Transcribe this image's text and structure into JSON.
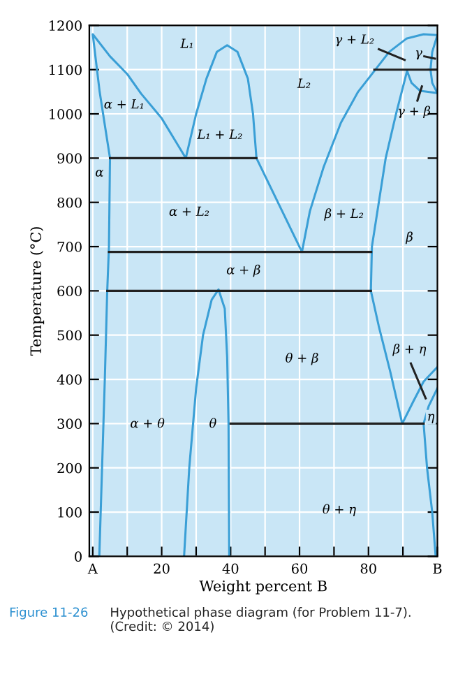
{
  "chart_data": {
    "type": "line",
    "xlabel": "Weight percent B",
    "ylabel": "Temperature (°C)",
    "xlim": [
      -1,
      100
    ],
    "ylim": [
      0,
      1200
    ],
    "xticks": [
      {
        "value": 0,
        "label": "A"
      },
      {
        "value": 10,
        "label": null
      },
      20,
      {
        "value": 30,
        "label": null
      },
      40,
      {
        "value": 50,
        "label": null
      },
      60,
      {
        "value": 70,
        "label": null
      },
      80,
      {
        "value": 90,
        "label": null
      },
      {
        "value": 100,
        "label": "B"
      }
    ],
    "yticks": [
      0,
      100,
      200,
      300,
      400,
      500,
      600,
      700,
      800,
      900,
      1000,
      1100,
      1200
    ],
    "grid": true,
    "series": [
      {
        "color": "#3a9fd6",
        "x": [
          1.9,
          2.5,
          3.5,
          4.2,
          4.7,
          5,
          4,
          2,
          0,
          5,
          10,
          14,
          20,
          27,
          30,
          33,
          36,
          39,
          42,
          45,
          46.5,
          47.5,
          60.7,
          63,
          67,
          72,
          77,
          81.7,
          86,
          91,
          96,
          100,
          98.5,
          98,
          98.5,
          100,
          95,
          92.5,
          91.2,
          88,
          85,
          83,
          81,
          80.7,
          83,
          86.4,
          89.8,
          93,
          96,
          100
        ],
        "values": [
          0,
          150,
          400,
          600,
          700,
          900,
          950,
          1050,
          1180,
          1130,
          1090,
          1046,
          990,
          900,
          1000,
          1080,
          1140,
          1155,
          1140,
          1080,
          1000,
          900,
          688,
          780,
          880,
          980,
          1050,
          1097,
          1140,
          1170,
          1180,
          1178,
          1140,
          1100,
          1070,
          1047,
          1052,
          1070,
          1097,
          1000,
          900,
          800,
          700,
          600,
          520,
          415,
          300,
          350,
          395,
          428
        ]
      },
      {
        "color": "#3a9fd6",
        "x": [
          100,
          97.5,
          96,
          97,
          98.5,
          99.5
        ],
        "values": [
          380,
          340,
          300,
          200,
          100,
          0
        ]
      },
      {
        "color": "#3a9fd6",
        "x": [
          26.5,
          28,
          30,
          32,
          34.5,
          36.5,
          38.3,
          39,
          39.4,
          39.6
        ],
        "values": [
          0,
          200,
          380,
          500,
          580,
          603,
          560,
          450,
          300,
          0
        ]
      },
      {
        "color": "#222222",
        "x": [
          5,
          47.5
        ],
        "values": [
          900,
          900
        ]
      },
      {
        "color": "#222222",
        "x": [
          4.7,
          80.8
        ],
        "values": [
          688,
          688
        ]
      },
      {
        "color": "#222222",
        "x": [
          4.2,
          80.7
        ],
        "values": [
          600,
          600
        ]
      },
      {
        "color": "#222222",
        "x": [
          81.7,
          100
        ],
        "values": [
          1100,
          1100
        ]
      },
      {
        "color": "#222222",
        "x": [
          40,
          96
        ],
        "values": [
          300,
          300
        ]
      },
      {
        "color": "#222222",
        "x": [
          83,
          90.5
        ],
        "values": [
          1146,
          1122
        ]
      },
      {
        "color": "#222222",
        "x": [
          96.2,
          99.3
        ],
        "values": [
          1130,
          1125
        ]
      },
      {
        "color": "#222222",
        "x": [
          94.2,
          95.5
        ],
        "values": [
          1030,
          1062
        ]
      },
      {
        "color": "#222222",
        "x": [
          92.3,
          96.6
        ],
        "values": [
          436,
          357
        ]
      }
    ],
    "annotations": [
      "L₁",
      "γ + L₂",
      "γ",
      "L₂",
      "α + L₁",
      "γ + β",
      "L₁ + L₂",
      "α",
      "α + L₂",
      "β + L₂",
      "β",
      "α + β",
      "θ + β",
      "β + η",
      "α + θ",
      "θ",
      "η",
      "θ + η",
      "Figure 11-26",
      "Hypothetical phase diagram (for Problem 11-7). (Credit: © 2014)"
    ]
  }
}
